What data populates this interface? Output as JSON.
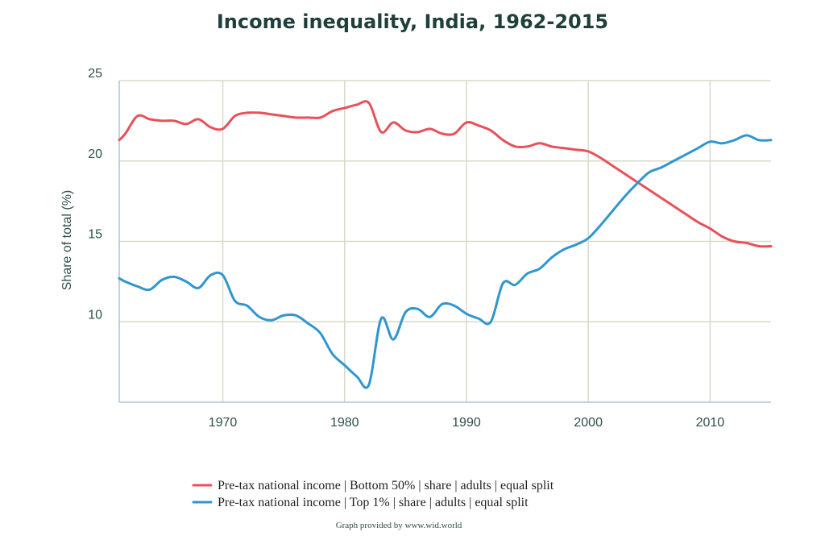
{
  "chart_data": {
    "type": "line",
    "title": "Income inequality, India, 1962-2015",
    "xlabel": "",
    "ylabel": "Share of total (%)",
    "xlim": [
      1961.5,
      2015
    ],
    "ylim": [
      5,
      25
    ],
    "x_ticks": [
      1970,
      1980,
      1990,
      2000,
      2010
    ],
    "y_ticks": [
      10,
      15,
      20,
      25
    ],
    "grid": true,
    "legend_position": "bottom",
    "series": [
      {
        "name": "Pre-tax national income | Bottom 50% | share | adults | equal split",
        "color": "#e8515a",
        "x": [
          1961.5,
          1962,
          1963,
          1964,
          1965,
          1966,
          1967,
          1968,
          1969,
          1970,
          1971,
          1972,
          1973,
          1974,
          1975,
          1976,
          1977,
          1978,
          1979,
          1980,
          1981,
          1982,
          1983,
          1984,
          1985,
          1986,
          1987,
          1988,
          1989,
          1990,
          1991,
          1992,
          1993,
          1994,
          1995,
          1996,
          1997,
          1998,
          1999,
          2000,
          2001,
          2002,
          2003,
          2004,
          2005,
          2006,
          2007,
          2008,
          2009,
          2010,
          2011,
          2012,
          2013,
          2014,
          2015
        ],
        "values": [
          21.3,
          21.7,
          22.8,
          22.6,
          22.5,
          22.5,
          22.3,
          22.6,
          22.1,
          22.0,
          22.8,
          23.0,
          23.0,
          22.9,
          22.8,
          22.7,
          22.7,
          22.7,
          23.1,
          23.3,
          23.5,
          23.6,
          21.8,
          22.4,
          21.9,
          21.8,
          22.0,
          21.7,
          21.7,
          22.4,
          22.2,
          21.9,
          21.3,
          20.9,
          20.9,
          21.1,
          20.9,
          20.8,
          20.7,
          20.6,
          20.2,
          19.7,
          19.2,
          18.7,
          18.2,
          17.7,
          17.2,
          16.7,
          16.2,
          15.8,
          15.3,
          15.0,
          14.9,
          14.7,
          14.7
        ]
      },
      {
        "name": "Pre-tax national income | Top 1% | share | adults | equal split",
        "color": "#2f96cf",
        "x": [
          1961.5,
          1962,
          1963,
          1964,
          1965,
          1966,
          1967,
          1968,
          1969,
          1970,
          1971,
          1972,
          1973,
          1974,
          1975,
          1976,
          1977,
          1978,
          1979,
          1980,
          1981,
          1982,
          1983,
          1984,
          1985,
          1986,
          1987,
          1988,
          1989,
          1990,
          1991,
          1992,
          1993,
          1994,
          1995,
          1996,
          1997,
          1998,
          1999,
          2000,
          2001,
          2002,
          2003,
          2004,
          2005,
          2006,
          2007,
          2008,
          2009,
          2010,
          2011,
          2012,
          2013,
          2014,
          2015
        ],
        "values": [
          12.7,
          12.5,
          12.2,
          12.0,
          12.6,
          12.8,
          12.5,
          12.1,
          12.9,
          12.9,
          11.3,
          11.0,
          10.3,
          10.1,
          10.4,
          10.4,
          9.9,
          9.3,
          8.0,
          7.3,
          6.6,
          6.1,
          10.2,
          8.9,
          10.6,
          10.8,
          10.3,
          11.1,
          11.0,
          10.5,
          10.2,
          10.0,
          12.4,
          12.3,
          13.0,
          13.3,
          14.0,
          14.5,
          14.8,
          15.2,
          16.0,
          16.9,
          17.8,
          18.6,
          19.3,
          19.6,
          20.0,
          20.4,
          20.8,
          21.2,
          21.1,
          21.3,
          21.6,
          21.3,
          21.3
        ]
      }
    ]
  },
  "credit": "Graph provided by www.wid.world"
}
